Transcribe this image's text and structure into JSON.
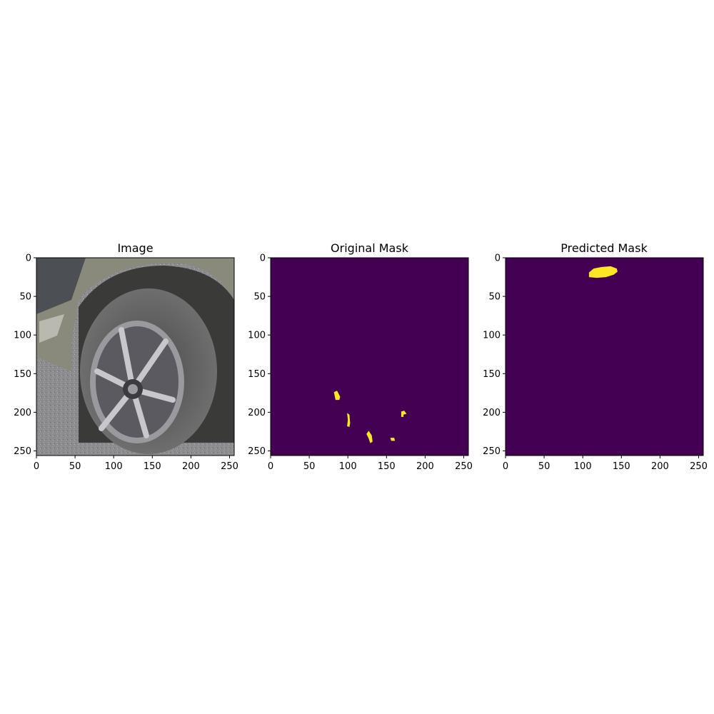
{
  "chart_data": [
    {
      "type": "image",
      "title": "Image",
      "xlim": [
        0,
        256
      ],
      "ylim": [
        256,
        0
      ],
      "xticks": [
        "0",
        "50",
        "100",
        "150",
        "200",
        "250"
      ],
      "yticks": [
        "0",
        "50",
        "100",
        "150",
        "200",
        "250"
      ],
      "content": "photo of a car wheel with alloy rim and tire on asphalt"
    },
    {
      "type": "heatmap",
      "title": "Original Mask",
      "xlim": [
        0,
        256
      ],
      "ylim": [
        256,
        0
      ],
      "xticks": [
        "0",
        "50",
        "100",
        "150",
        "200",
        "250"
      ],
      "yticks": [
        "0",
        "50",
        "100",
        "150",
        "200",
        "250"
      ],
      "background_color": "#440154",
      "foreground_color": "#fde725",
      "regions": [
        [
          [
            82,
            174
          ],
          [
            86,
            172
          ],
          [
            90,
            180
          ],
          [
            89,
            184
          ],
          [
            84,
            184
          ],
          [
            83,
            179
          ]
        ],
        [
          [
            99,
            201
          ],
          [
            102,
            203
          ],
          [
            103,
            214
          ],
          [
            102,
            219
          ],
          [
            99,
            218
          ],
          [
            100,
            210
          ]
        ],
        [
          [
            124,
            228
          ],
          [
            127,
            224
          ],
          [
            131,
            230
          ],
          [
            132,
            238
          ],
          [
            129,
            240
          ],
          [
            127,
            234
          ]
        ],
        [
          [
            155,
            233
          ],
          [
            160,
            233
          ],
          [
            161,
            237
          ],
          [
            156,
            237
          ]
        ],
        [
          [
            169,
            199
          ],
          [
            173,
            198
          ],
          [
            176,
            202
          ],
          [
            172,
            203
          ],
          [
            172,
            206
          ],
          [
            169,
            206
          ]
        ]
      ]
    },
    {
      "type": "heatmap",
      "title": "Predicted Mask",
      "xlim": [
        0,
        256
      ],
      "ylim": [
        256,
        0
      ],
      "xticks": [
        "0",
        "50",
        "100",
        "150",
        "200",
        "250"
      ],
      "yticks": [
        "0",
        "50",
        "100",
        "150",
        "200",
        "250"
      ],
      "background_color": "#440154",
      "foreground_color": "#fde725",
      "regions": [
        [
          [
            108,
            19
          ],
          [
            114,
            14
          ],
          [
            124,
            12
          ],
          [
            136,
            11
          ],
          [
            144,
            14
          ],
          [
            145,
            18
          ],
          [
            140,
            22
          ],
          [
            130,
            25
          ],
          [
            118,
            26
          ],
          [
            108,
            25
          ]
        ]
      ]
    }
  ]
}
